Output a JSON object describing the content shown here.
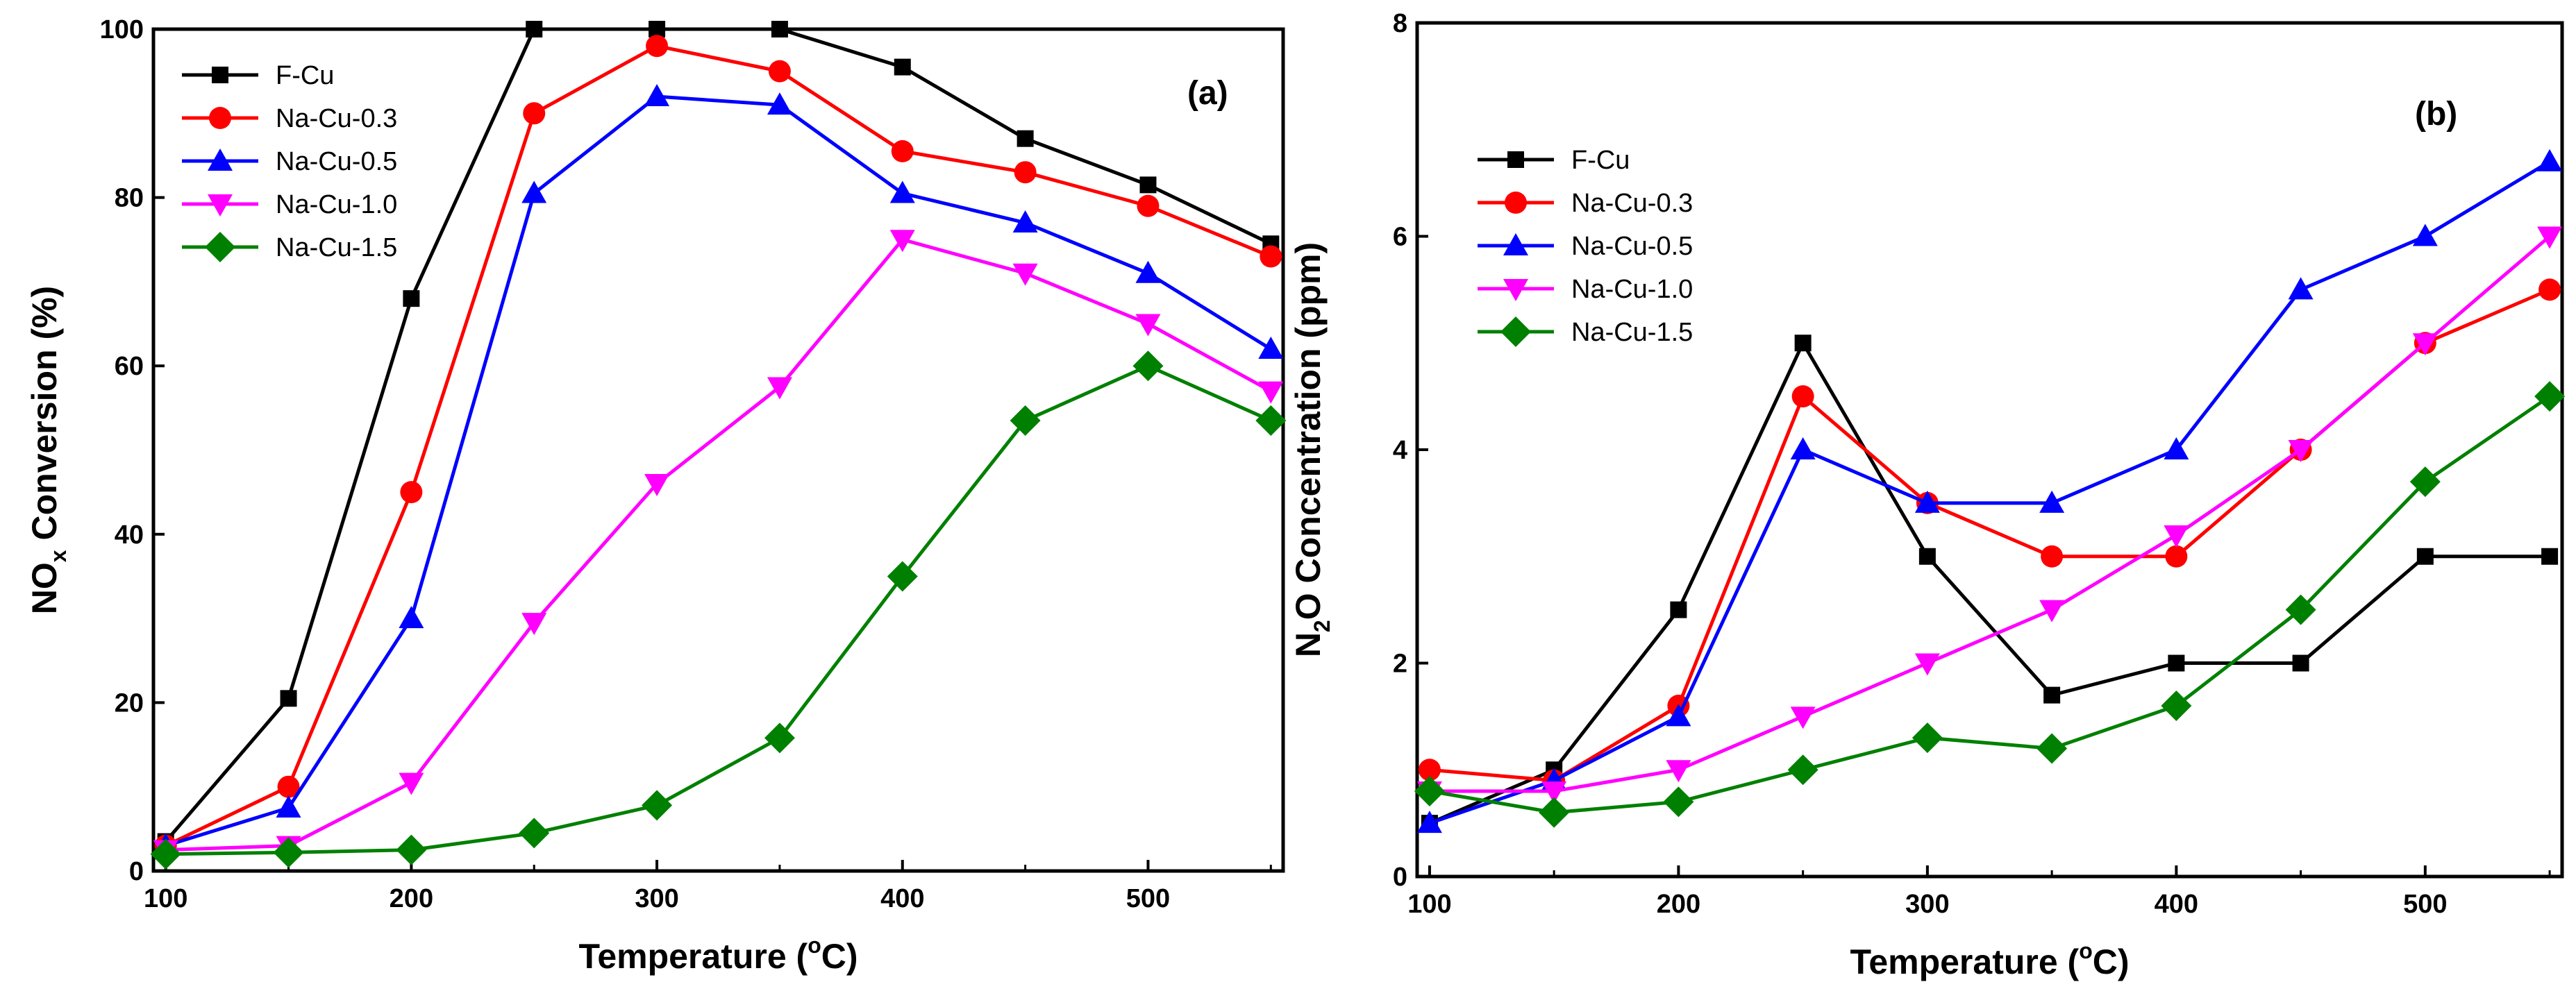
{
  "colors": {
    "F-Cu": "#000000",
    "Na-Cu-0.3": "#ff0000",
    "Na-Cu-0.5": "#0000ff",
    "Na-Cu-1.0": "#ff00ff",
    "Na-Cu-1.5": "#008000"
  },
  "markers": {
    "F-Cu": "square",
    "Na-Cu-0.3": "circle",
    "Na-Cu-0.5": "triangle-up",
    "Na-Cu-1.0": "triangle-down",
    "Na-Cu-1.5": "diamond"
  },
  "chart_data": [
    {
      "type": "line",
      "panel_label": "(a)",
      "xlabel_main": "Temperature (",
      "xlabel_sup": "o",
      "xlabel_tail": "C)",
      "ylabel_main": "NO",
      "ylabel_sub": "x",
      "ylabel_tail": " Conversion (%)",
      "xlim": [
        95,
        555
      ],
      "ylim": [
        0,
        100
      ],
      "xticks": [
        100,
        200,
        300,
        400,
        500
      ],
      "yticks": [
        0,
        20,
        40,
        60,
        80,
        100
      ],
      "x": [
        100,
        150,
        200,
        250,
        300,
        350,
        400,
        450,
        500,
        550
      ],
      "legend_position": "top-left",
      "series": [
        {
          "name": "F-Cu",
          "values": [
            3.5,
            20.5,
            68,
            100,
            100,
            100,
            95.5,
            87,
            81.5,
            74.5
          ]
        },
        {
          "name": "Na-Cu-0.3",
          "values": [
            3,
            10,
            45,
            90,
            98,
            95,
            85.5,
            83,
            79,
            73
          ]
        },
        {
          "name": "Na-Cu-0.5",
          "values": [
            3,
            7.5,
            30,
            80.5,
            92,
            91,
            80.5,
            77,
            71,
            62
          ]
        },
        {
          "name": "Na-Cu-1.0",
          "values": [
            2.5,
            3,
            10.5,
            29.5,
            46,
            57.5,
            75,
            71,
            65,
            57
          ]
        },
        {
          "name": "Na-Cu-1.5",
          "values": [
            2,
            2.2,
            2.5,
            4.5,
            7.8,
            15.8,
            35,
            53.5,
            60,
            53.5
          ]
        }
      ]
    },
    {
      "type": "line",
      "panel_label": "(b)",
      "xlabel_main": "Temperature (",
      "xlabel_sup": "o",
      "xlabel_tail": "C)",
      "ylabel_main": "N",
      "ylabel_sub": "2",
      "ylabel_tail": "O Concentration (ppm)",
      "xlim": [
        95,
        555
      ],
      "ylim": [
        0,
        8
      ],
      "xticks": [
        100,
        200,
        300,
        400,
        500
      ],
      "yticks": [
        0,
        2,
        4,
        6,
        8
      ],
      "x": [
        100,
        150,
        200,
        250,
        300,
        350,
        400,
        450,
        500,
        550
      ],
      "legend_position": "top-left",
      "series": [
        {
          "name": "F-Cu",
          "values": [
            0.5,
            1.0,
            2.5,
            5.0,
            3.0,
            1.7,
            2.0,
            2.0,
            3.0,
            3.0
          ]
        },
        {
          "name": "Na-Cu-0.3",
          "values": [
            1.0,
            0.9,
            1.6,
            4.5,
            3.5,
            3.0,
            3.0,
            4.0,
            5.0,
            5.5
          ]
        },
        {
          "name": "Na-Cu-0.5",
          "values": [
            0.5,
            0.9,
            1.5,
            4.0,
            3.5,
            3.5,
            4.0,
            5.5,
            6.0,
            6.7
          ]
        },
        {
          "name": "Na-Cu-1.0",
          "values": [
            0.8,
            0.8,
            1.0,
            1.5,
            2.0,
            2.5,
            3.2,
            4.0,
            5.0,
            6.0
          ]
        },
        {
          "name": "Na-Cu-1.5",
          "values": [
            0.8,
            0.6,
            0.7,
            1.0,
            1.3,
            1.2,
            1.6,
            2.5,
            3.7,
            4.5
          ]
        }
      ]
    }
  ]
}
